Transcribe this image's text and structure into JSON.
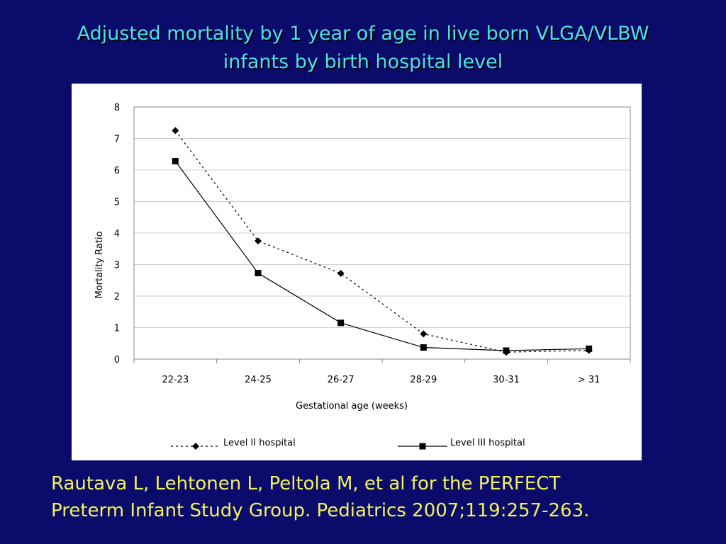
{
  "title": {
    "line1": "Adjusted mortality by 1 year of age in live born VLGA/VLBW",
    "line2": "infants by birth hospital level"
  },
  "citation": {
    "line1": "Rautava L, Lehtonen L, Peltola M, et al for the PERFECT",
    "line2": "Preterm Infant Study Group. Pediatrics 2007;119:257-263."
  },
  "colors": {
    "background": "#0b0b6b",
    "title": "#49e0f2",
    "citation": "#f2f25e",
    "panel": "#ffffff"
  },
  "chart_data": {
    "type": "line",
    "title": "",
    "xlabel": "Gestational age (weeks)",
    "ylabel": "Mortality Ratio",
    "categories": [
      "22-23",
      "24-25",
      "26-27",
      "28-29",
      "30-31",
      "> 31"
    ],
    "ylim": [
      0,
      8
    ],
    "yticks": [
      "0",
      "1",
      "2",
      "3",
      "4",
      "5",
      "6",
      "7",
      "8"
    ],
    "grid": true,
    "legend_position": "bottom",
    "series": [
      {
        "name": "Level II hospital",
        "values": [
          7.25,
          3.75,
          2.72,
          0.8,
          0.22,
          0.28
        ],
        "line_style": "dotted",
        "marker": "diamond",
        "color": "#000000"
      },
      {
        "name": "Level III hospital",
        "values": [
          6.28,
          2.73,
          1.15,
          0.37,
          0.27,
          0.33
        ],
        "line_style": "solid",
        "marker": "square",
        "color": "#000000"
      }
    ]
  }
}
